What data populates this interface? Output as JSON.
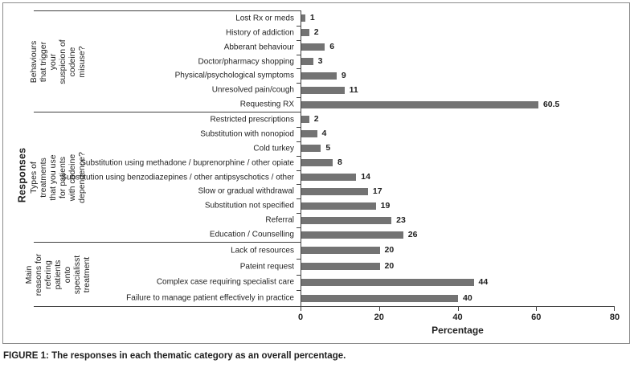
{
  "figure": {
    "caption_label": "FIGURE 1:",
    "caption_text": "The responses in each thematic category as an overall percentage."
  },
  "chart_data": {
    "type": "bar",
    "orientation": "horizontal",
    "axis_title_y": "Responses",
    "xlabel": "Percentage",
    "xlim": [
      0,
      80
    ],
    "xticks": [
      0,
      20,
      40,
      60,
      80
    ],
    "bar_color": "#737373",
    "grid": false,
    "legend": false,
    "groups": [
      {
        "label": "Behaviours that trigger your suspicion of codeine misuse?",
        "categories": [
          "Lost Rx or meds",
          "History of addiction",
          "Abberant behaviour",
          "Doctor/pharmacy shopping",
          "Physical/psychological symptoms",
          "Unresolved pain/cough",
          "Requesting RX"
        ],
        "values": [
          1,
          2,
          6,
          3,
          9,
          11,
          60.5
        ]
      },
      {
        "label": "Types of treatments that you use for patients with codeine dependence?",
        "categories": [
          "Restricted prescriptions",
          "Substitution with nonopiod",
          "Cold turkey",
          "Substitution using methadone / buprenorphine / other opiate",
          "Substitution using benzodiazepines / other antipsyschotics / other",
          "Slow or gradual withdrawal",
          "Substitution not specified",
          "Referral",
          "Education / Counselling"
        ],
        "values": [
          2,
          4,
          5,
          8,
          14,
          17,
          19,
          23,
          26
        ]
      },
      {
        "label": "Main reasons for refering patients onto specialisst treatment",
        "categories": [
          "Lack of resources",
          "Pateint request",
          "Complex case requiring specialist care",
          "Failure to manage patient effectively in practice"
        ],
        "values": [
          20,
          20,
          44,
          40
        ]
      }
    ]
  }
}
